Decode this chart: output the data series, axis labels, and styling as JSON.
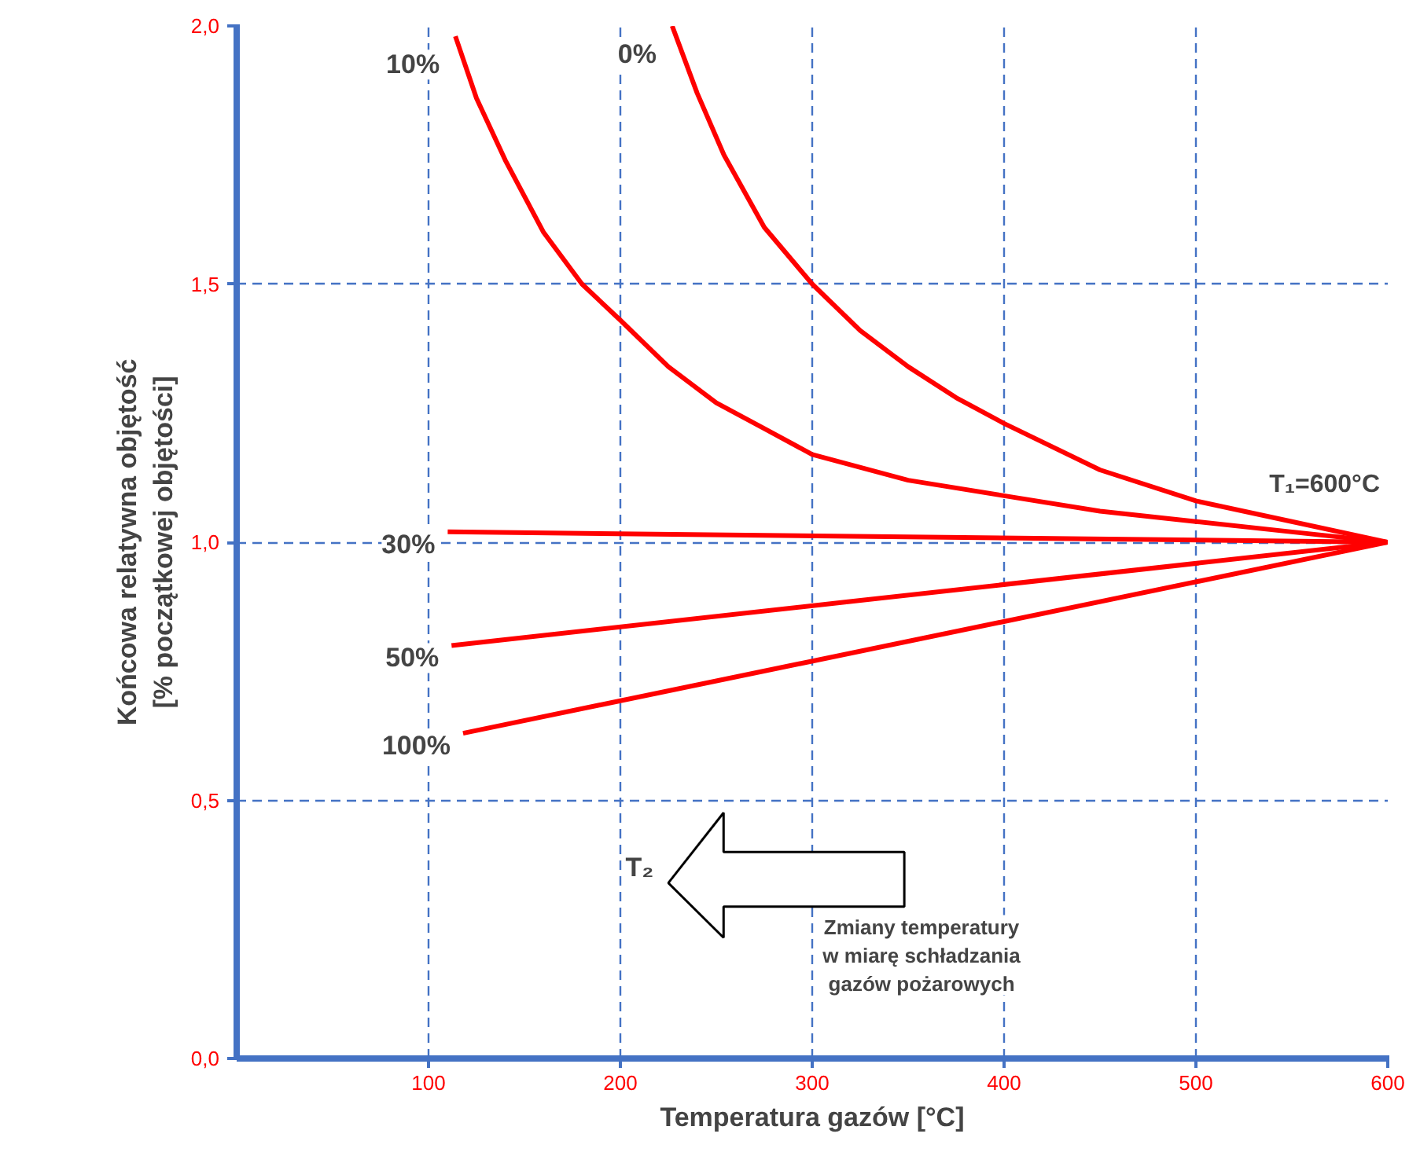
{
  "chart_data": {
    "type": "line",
    "xlabel": "Temperatura gazów [°C]",
    "ylabel": "Końcowa relatywna objętość\n[% początkowej objętości]",
    "xlim": [
      0,
      600
    ],
    "ylim": [
      0,
      2.0
    ],
    "xticks": [
      100,
      200,
      300,
      400,
      500,
      600
    ],
    "yticks": [
      {
        "value": 0,
        "label": "0,0"
      },
      {
        "value": 0.5,
        "label": "0,5"
      },
      {
        "value": 1.0,
        "label": "1,0"
      },
      {
        "value": 1.5,
        "label": "1,5"
      },
      {
        "value": 2.0,
        "label": "2,0"
      }
    ],
    "grid": true,
    "marker": "none",
    "line_style": "solid",
    "series": [
      {
        "name": "0%",
        "color": "#ff0000",
        "x": [
          227,
          240,
          254,
          275,
          300,
          325,
          350,
          375,
          400,
          450,
          500,
          550,
          600
        ],
        "values": [
          2.0,
          1.87,
          1.75,
          1.61,
          1.5,
          1.41,
          1.34,
          1.28,
          1.23,
          1.14,
          1.08,
          1.04,
          1.0
        ]
      },
      {
        "name": "10%",
        "color": "#ff0000",
        "x": [
          114,
          125,
          140,
          160,
          180,
          200,
          225,
          250,
          275,
          300,
          350,
          400,
          450,
          500,
          550,
          600
        ],
        "values": [
          1.98,
          1.86,
          1.74,
          1.6,
          1.5,
          1.43,
          1.34,
          1.27,
          1.22,
          1.17,
          1.12,
          1.09,
          1.06,
          1.04,
          1.02,
          1.0
        ]
      },
      {
        "name": "30%",
        "color": "#ff0000",
        "x": [
          110,
          600
        ],
        "values": [
          1.02,
          1.0
        ]
      },
      {
        "name": "50%",
        "color": "#ff0000",
        "x": [
          112,
          600
        ],
        "values": [
          0.8,
          1.0
        ]
      },
      {
        "name": "100%",
        "color": "#ff0000",
        "x": [
          118,
          600
        ],
        "values": [
          0.63,
          1.0
        ]
      }
    ],
    "annotations": [
      {
        "text": "T₁=600°C",
        "x": 600,
        "y": 1.0
      },
      "T₂",
      "Zmiany temperatury\nw miarę schładzania\ngazów pożarowych"
    ]
  }
}
